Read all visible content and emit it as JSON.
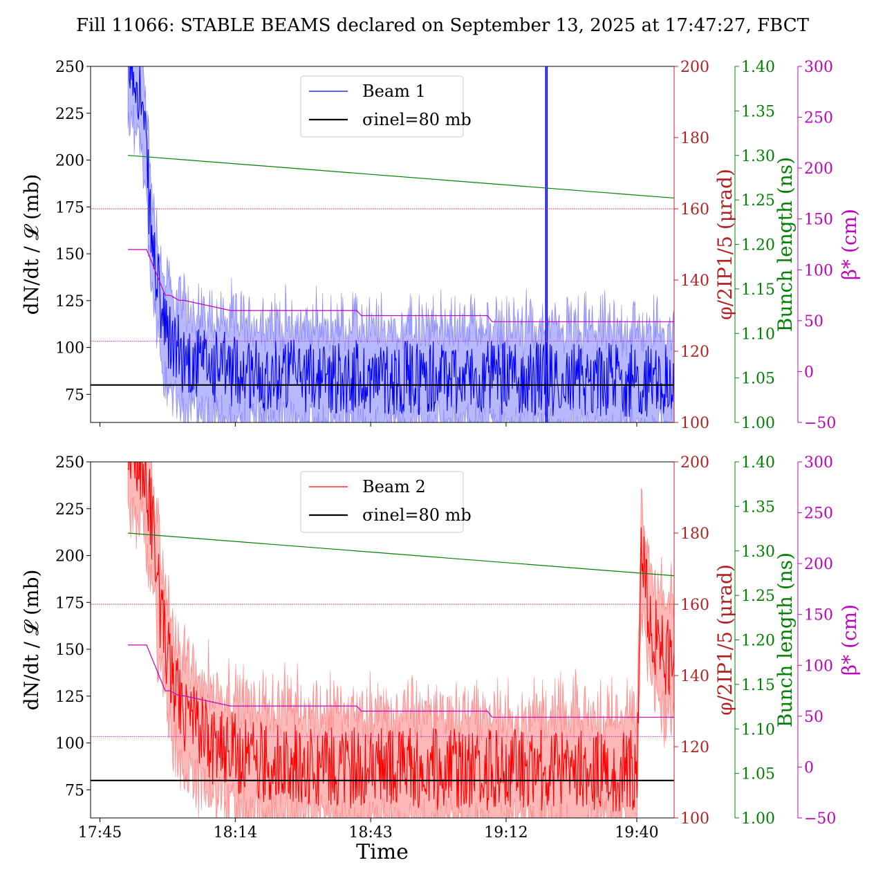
{
  "title": "Fill 11066: STABLE BEAMS declared on September 13, 2025 at 17:47:27, FBCT",
  "colors": {
    "beam1": "#0000ff",
    "beam2": "#ff0000",
    "sigma": "#000000",
    "crossing": "#b22222",
    "bunch": "#008000",
    "beta": "#c000c0"
  },
  "axes": {
    "left_label": "dN/dt / 𝓛 (mb)",
    "right1_label": "φ/2IP1/5 (μrad)",
    "right2_label": "Bunch length (ns)",
    "right3_label": "β* (cm)",
    "xlabel": "Time"
  },
  "chart_data": [
    {
      "type": "line",
      "panel": "top",
      "title": "Fill 11066: STABLE BEAMS declared on September 13, 2025 at 17:47:27, FBCT",
      "xlabel": "",
      "ylabel": "dN/dt / 𝓛 (mb)",
      "x_unit": "minutes after 17:45",
      "xlim": [
        -2,
        123
      ],
      "x_ticks": [
        "17:45",
        "18:14",
        "18:43",
        "19:12",
        "19:40"
      ],
      "ylim": [
        60,
        250
      ],
      "y_ticks": [
        75,
        100,
        125,
        150,
        175,
        200,
        225,
        250
      ],
      "legend_position": "top-center",
      "legend": [
        "Beam 1",
        "σinel=80 mb"
      ],
      "right_axes": [
        {
          "label": "φ/2IP1/5 (μrad)",
          "ylim": [
            100,
            200
          ],
          "ticks": [
            100,
            120,
            140,
            160,
            180,
            200
          ]
        },
        {
          "label": "Bunch length (ns)",
          "ylim": [
            1.0,
            1.4
          ],
          "ticks": [
            "1.00",
            "1.05",
            "1.10",
            "1.15",
            "1.20",
            "1.25",
            "1.30",
            "1.35",
            "1.40"
          ]
        },
        {
          "label": "β* (cm)",
          "ylim": [
            -50,
            300
          ],
          "ticks": [
            -50,
            0,
            50,
            100,
            150,
            200,
            250,
            300
          ]
        }
      ],
      "series": [
        {
          "name": "Beam 1",
          "axis": "left",
          "color": "#0000ff",
          "x": [
            6,
            8,
            9,
            10,
            11,
            12,
            13,
            14,
            16,
            18,
            20,
            24,
            28,
            35,
            45,
            60,
            80,
            100,
            110,
            120,
            129
          ],
          "y": [
            250,
            245,
            230,
            200,
            160,
            140,
            120,
            108,
            100,
            95,
            92,
            90,
            88,
            86,
            85,
            84,
            84,
            83,
            83,
            82,
            82
          ],
          "band_halfwidth": 18
        },
        {
          "name": "σinel=80 mb",
          "axis": "left",
          "color": "#000000",
          "x": [
            -2,
            123
          ],
          "y": [
            80,
            80
          ]
        },
        {
          "name": "Crossing angle",
          "axis": "right1",
          "color": "#b22222",
          "style": "dotted",
          "x": [
            -2,
            123
          ],
          "y": [
            160,
            160
          ]
        },
        {
          "name": "Bunch length",
          "axis": "right2",
          "color": "#008000",
          "x": [
            6,
            128
          ],
          "y": [
            1.3,
            1.25
          ]
        },
        {
          "name": "β*",
          "axis": "right3",
          "color": "#c000c0",
          "x": [
            6,
            10,
            14,
            15,
            17,
            18,
            28,
            29,
            55,
            56,
            83,
            84,
            129
          ],
          "y": [
            120,
            120,
            75,
            75,
            70,
            70,
            60,
            60,
            60,
            55,
            55,
            49,
            49
          ]
        },
        {
          "name": "β* reference",
          "axis": "right3",
          "color": "#c000c0",
          "style": "dotted",
          "x": [
            -2,
            123
          ],
          "y": [
            30,
            30
          ]
        }
      ]
    },
    {
      "type": "line",
      "panel": "bottom",
      "xlabel": "Time",
      "ylabel": "dN/dt / 𝓛 (mb)",
      "x_unit": "minutes after 17:45",
      "xlim": [
        -2,
        123
      ],
      "x_ticks": [
        "17:45",
        "18:14",
        "18:43",
        "19:12",
        "19:40"
      ],
      "ylim": [
        60,
        250
      ],
      "y_ticks": [
        75,
        100,
        125,
        150,
        175,
        200,
        225,
        250
      ],
      "legend_position": "top-center",
      "legend": [
        "Beam 2",
        "σinel=80 mb"
      ],
      "right_axes": [
        {
          "label": "φ/2IP1/5 (μrad)",
          "ylim": [
            100,
            200
          ],
          "ticks": [
            100,
            120,
            140,
            160,
            180,
            200
          ]
        },
        {
          "label": "Bunch length (ns)",
          "ylim": [
            1.0,
            1.4
          ],
          "ticks": [
            "1.00",
            "1.05",
            "1.10",
            "1.15",
            "1.20",
            "1.25",
            "1.30",
            "1.35",
            "1.40"
          ]
        },
        {
          "label": "β* (cm)",
          "ylim": [
            -50,
            300
          ],
          "ticks": [
            -50,
            0,
            50,
            100,
            150,
            200,
            250,
            300
          ]
        }
      ],
      "series": [
        {
          "name": "Beam 2",
          "axis": "left",
          "color": "#ff0000",
          "x": [
            6,
            9,
            11,
            13,
            15,
            17,
            20,
            24,
            28,
            35,
            45,
            60,
            80,
            100,
            110,
            115,
            116,
            117,
            118,
            120,
            124,
            128,
            129
          ],
          "y": [
            250,
            250,
            220,
            170,
            140,
            120,
            110,
            100,
            95,
            90,
            88,
            86,
            86,
            85,
            85,
            85,
            200,
            180,
            165,
            150,
            140,
            125,
            130
          ],
          "band_halfwidth": 20
        },
        {
          "name": "σinel=80 mb",
          "axis": "left",
          "color": "#000000",
          "x": [
            -2,
            123
          ],
          "y": [
            80,
            80
          ]
        },
        {
          "name": "Crossing angle",
          "axis": "right1",
          "color": "#b22222",
          "style": "dotted",
          "x": [
            -2,
            123
          ],
          "y": [
            160,
            160
          ]
        },
        {
          "name": "Bunch length",
          "axis": "right2",
          "color": "#008000",
          "x": [
            6,
            128
          ],
          "y": [
            1.32,
            1.27
          ]
        },
        {
          "name": "β*",
          "axis": "right3",
          "color": "#c000c0",
          "x": [
            6,
            10,
            14,
            15,
            17,
            18,
            28,
            29,
            55,
            56,
            83,
            84,
            129
          ],
          "y": [
            120,
            120,
            75,
            75,
            70,
            70,
            60,
            60,
            60,
            55,
            55,
            49,
            49
          ]
        },
        {
          "name": "β* reference",
          "axis": "right3",
          "color": "#c000c0",
          "style": "dotted",
          "x": [
            -2,
            123
          ],
          "y": [
            30,
            30
          ]
        }
      ]
    }
  ]
}
